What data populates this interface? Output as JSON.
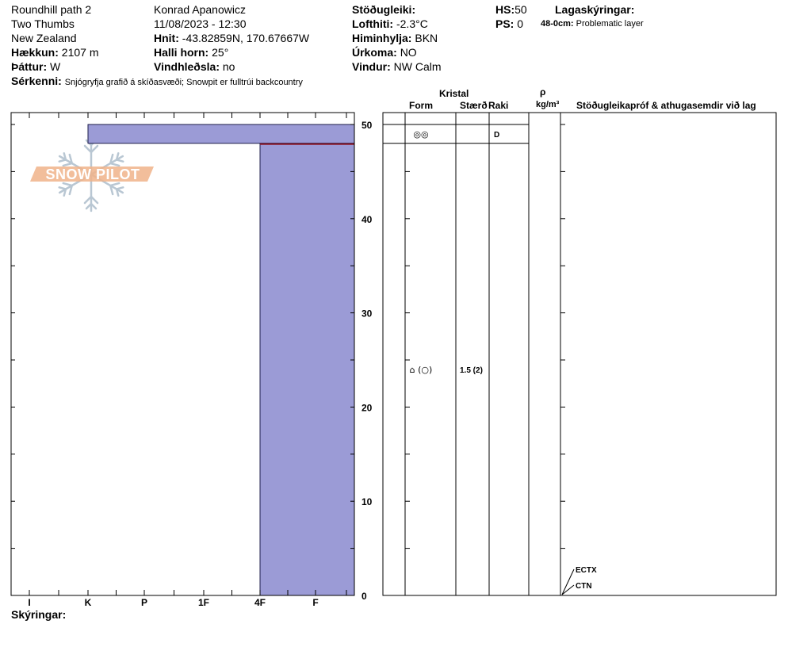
{
  "header": {
    "location": "Roundhill path 2",
    "range": "Two Thumbs",
    "country": "New Zealand",
    "elevation_label": "Hækkun:",
    "elevation": "2107 m",
    "aspect_label": "Þáttur:",
    "aspect": "W",
    "observer": "Konrad Apanowicz",
    "datetime": "11/08/2023 - 12:30",
    "coords_label": "Hnit:",
    "coords": "-43.82859N, 170.67667W",
    "slope_label": "Halli horn:",
    "slope": "25°",
    "wind_loading_label": "Vindhleðsla:",
    "wind_loading": "no",
    "stability_label": "Stöðugleiki:",
    "stability": "",
    "air_temp_label": "Lofthiti:",
    "air_temp": "-2.3°C",
    "sky_label": "Himinhylja:",
    "sky": "BKN",
    "precip_label": "Úrkoma:",
    "precip": "NO",
    "wind_label": "Vindur:",
    "wind": "NW Calm",
    "hs_label": "HS:",
    "hs": "50",
    "ps_label": "PS:",
    "ps": "0",
    "layer_notes_label": "Lagaskýringar:",
    "layer_note_depth": "48-0cm:",
    "layer_note_text": "Problematic layer",
    "specifics_label": "Sérkenni:",
    "specifics": "Snjógryfja grafið á skíðasvæði;  Snowpit er fulltrúi backcountry"
  },
  "columns": {
    "crystal": "Kristal",
    "form": "Form",
    "size": "Stærð",
    "moisture": "Raki",
    "rho": "ρ",
    "density_unit": "kg/m³",
    "tests": "Stöðugleikapróf & athugasemdir við lag"
  },
  "hardness_scale": [
    "I",
    "K",
    "P",
    "1F",
    "4F",
    "F"
  ],
  "depth_ticks": [
    "0",
    "10",
    "20",
    "30",
    "40",
    "50"
  ],
  "layers": [
    {
      "top": 50,
      "bottom": 48,
      "hardness": "K",
      "form": "◎◎",
      "size": "",
      "moisture": "D"
    },
    {
      "top": 48,
      "bottom": 0,
      "hardness": "4F",
      "form": "⌂ (○)",
      "size": "1.5 (2)",
      "moisture": ""
    }
  ],
  "tests": [
    {
      "label": "ECTX"
    },
    {
      "label": "CTN"
    }
  ],
  "legend_label": "Skýringar:",
  "watermark": "SNOW PILOT",
  "colors": {
    "layer_fill": "#9b9bd6",
    "problem_line": "#8b1a2a",
    "watermark": "#f0b38a",
    "snowflake": "#b9c7d3"
  }
}
